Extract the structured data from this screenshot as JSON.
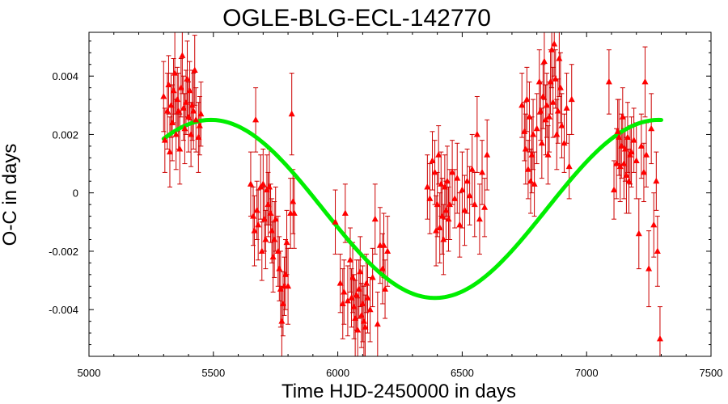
{
  "chart_data": {
    "type": "scatter",
    "title": "OGLE-BLG-ECL-142770",
    "xlabel": "Time HJD-2450000 in days",
    "ylabel": "O-C in days",
    "xlim": [
      5000,
      7500
    ],
    "ylim": [
      -0.0056,
      0.0055
    ],
    "x_ticks": [
      5000,
      5500,
      6000,
      6500,
      7000,
      7500
    ],
    "x_tick_labels": [
      "5000",
      "5500",
      "6000",
      "6500",
      "7000",
      "7500"
    ],
    "y_ticks": [
      -0.004,
      -0.002,
      0,
      0.002,
      0.004
    ],
    "y_tick_labels": [
      "-0.004",
      "-0.002",
      "0",
      "0.002",
      "0.004"
    ],
    "grid": false,
    "series": [
      {
        "kind": "points-with-errorbars",
        "color": "#ff0000",
        "errorbar_color": "#cc0000",
        "points": [
          [
            5300,
            0.0033,
            0.0012
          ],
          [
            5305,
            0.0018,
            0.0011
          ],
          [
            5315,
            0.0028,
            0.0013
          ],
          [
            5320,
            0.0037,
            0.001
          ],
          [
            5325,
            0.0014,
            0.0012
          ],
          [
            5330,
            0.003,
            0.0011
          ],
          [
            5335,
            0.0024,
            0.0013
          ],
          [
            5340,
            0.0035,
            0.0011
          ],
          [
            5345,
            0.0041,
            0.0014
          ],
          [
            5350,
            0.002,
            0.0012
          ],
          [
            5355,
            0.0032,
            0.0011
          ],
          [
            5360,
            0.0028,
            0.0013
          ],
          [
            5365,
            0.0015,
            0.0012
          ],
          [
            5370,
            0.0036,
            0.001
          ],
          [
            5375,
            0.0047,
            0.0013
          ],
          [
            5380,
            0.0029,
            0.0011
          ],
          [
            5385,
            0.0022,
            0.0012
          ],
          [
            5390,
            0.0031,
            0.0011
          ],
          [
            5395,
            0.0039,
            0.0013
          ],
          [
            5400,
            0.0026,
            0.0012
          ],
          [
            5405,
            0.0035,
            0.001
          ],
          [
            5410,
            0.002,
            0.0011
          ],
          [
            5415,
            0.003,
            0.0012
          ],
          [
            5420,
            0.0028,
            0.0013
          ],
          [
            5425,
            0.0042,
            0.0012
          ],
          [
            5430,
            0.0025,
            0.0011
          ],
          [
            5440,
            0.0019,
            0.0012
          ],
          [
            5445,
            0.0023,
            0.001
          ],
          [
            5450,
            0.0027,
            0.0011
          ],
          [
            5650,
            0.0003,
            0.0011
          ],
          [
            5660,
            -0.0008,
            0.001
          ],
          [
            5665,
            -0.0013,
            0.0012
          ],
          [
            5670,
            0.0025,
            0.0011
          ],
          [
            5675,
            -0.0006,
            0.001
          ],
          [
            5680,
            -0.0011,
            0.0012
          ],
          [
            5690,
            0.0002,
            0.0011
          ],
          [
            5695,
            -0.002,
            0.001
          ],
          [
            5700,
            0.0003,
            0.0012
          ],
          [
            5705,
            -0.0009,
            0.0011
          ],
          [
            5710,
            -0.0016,
            0.001
          ],
          [
            5715,
            0.0001,
            0.0012
          ],
          [
            5720,
            -0.0004,
            0.0011
          ],
          [
            5725,
            0.0002,
            0.0013
          ],
          [
            5730,
            -0.0007,
            0.001
          ],
          [
            5735,
            -0.0013,
            0.0011
          ],
          [
            5740,
            -0.0022,
            0.0012
          ],
          [
            5745,
            -0.0016,
            0.0013
          ],
          [
            5750,
            -0.0009,
            0.0011
          ],
          [
            5760,
            -0.002,
            0.0012
          ],
          [
            5765,
            -0.0026,
            0.0011
          ],
          [
            5770,
            -0.0033,
            0.0013
          ],
          [
            5775,
            -0.0044,
            0.0012
          ],
          [
            5780,
            -0.0038,
            0.0011
          ],
          [
            5785,
            -0.0032,
            0.001
          ],
          [
            5790,
            -0.0028,
            0.0012
          ],
          [
            5795,
            -0.0017,
            0.0011
          ],
          [
            5800,
            -0.0032,
            0.0013
          ],
          [
            5810,
            -0.0007,
            0.0012
          ],
          [
            5815,
            0.0027,
            0.0014
          ],
          [
            5820,
            -0.0003,
            0.0011
          ],
          [
            5825,
            -0.0007,
            0.0012
          ],
          [
            5990,
            -0.001,
            0.0011
          ],
          [
            6010,
            -0.0031,
            0.001
          ],
          [
            6020,
            -0.0038,
            0.0012
          ],
          [
            6025,
            -0.0034,
            0.0011
          ],
          [
            6030,
            -0.0007,
            0.001
          ],
          [
            6040,
            -0.0037,
            0.0012
          ],
          [
            6050,
            -0.0023,
            0.0011
          ],
          [
            6055,
            -0.0036,
            0.001
          ],
          [
            6060,
            -0.0029,
            0.0012
          ],
          [
            6065,
            -0.0039,
            0.0011
          ],
          [
            6070,
            -0.0043,
            0.0013
          ],
          [
            6075,
            -0.0035,
            0.0012
          ],
          [
            6080,
            -0.0047,
            0.0011
          ],
          [
            6085,
            -0.0033,
            0.001
          ],
          [
            6090,
            -0.0027,
            0.0012
          ],
          [
            6095,
            -0.0042,
            0.0011
          ],
          [
            6100,
            -0.0038,
            0.0013
          ],
          [
            6105,
            -0.0044,
            0.0012
          ],
          [
            6110,
            -0.0046,
            0.0011
          ],
          [
            6115,
            -0.0031,
            0.001
          ],
          [
            6120,
            -0.0036,
            0.0012
          ],
          [
            6130,
            -0.004,
            0.0011
          ],
          [
            6140,
            -0.0029,
            0.001
          ],
          [
            6150,
            -0.0009,
            0.0012
          ],
          [
            6160,
            -0.0045,
            0.0011
          ],
          [
            6170,
            -0.0018,
            0.0013
          ],
          [
            6180,
            -0.0026,
            0.0012
          ],
          [
            6185,
            -0.0018,
            0.0011
          ],
          [
            6190,
            -0.0033,
            0.001
          ],
          [
            6200,
            -0.002,
            0.0012
          ],
          [
            6360,
            0.0002,
            0.0011
          ],
          [
            6370,
            -0.0002,
            0.0012
          ],
          [
            6380,
            0.0011,
            0.001
          ],
          [
            6390,
            0.0007,
            0.0011
          ],
          [
            6395,
            -0.0013,
            0.0012
          ],
          [
            6400,
            -0.0004,
            0.0011
          ],
          [
            6405,
            0.0013,
            0.001
          ],
          [
            6410,
            -0.0012,
            0.0012
          ],
          [
            6415,
            0.0003,
            0.0011
          ],
          [
            6420,
            -0.0008,
            0.0013
          ],
          [
            6425,
            -0.0016,
            0.0012
          ],
          [
            6430,
            0.0002,
            0.0011
          ],
          [
            6435,
            -0.0006,
            0.001
          ],
          [
            6440,
            0.0004,
            0.0012
          ],
          [
            6445,
            -0.0009,
            0.0011
          ],
          [
            6450,
            -0.0004,
            0.0012
          ],
          [
            6460,
            0.0007,
            0.0011
          ],
          [
            6470,
            -0.0002,
            0.001
          ],
          [
            6480,
            0.0005,
            0.0012
          ],
          [
            6490,
            -0.0011,
            0.0011
          ],
          [
            6500,
            0.0001,
            0.0013
          ],
          [
            6510,
            -0.0006,
            0.0012
          ],
          [
            6520,
            0.0004,
            0.0011
          ],
          [
            6530,
            -0.0001,
            0.001
          ],
          [
            6540,
            0.0008,
            0.0012
          ],
          [
            6550,
            -0.0004,
            0.0011
          ],
          [
            6560,
            0.002,
            0.0013
          ],
          [
            6570,
            -0.0009,
            0.0012
          ],
          [
            6580,
            0.0007,
            0.0011
          ],
          [
            6590,
            -0.0005,
            0.001
          ],
          [
            6600,
            0.0013,
            0.0012
          ],
          [
            6740,
            0.003,
            0.0011
          ],
          [
            6750,
            0.0021,
            0.001
          ],
          [
            6755,
            0.0015,
            0.0012
          ],
          [
            6760,
            0.0032,
            0.0011
          ],
          [
            6765,
            0.0008,
            0.001
          ],
          [
            6770,
            0.0026,
            0.0012
          ],
          [
            6775,
            0.0004,
            0.0011
          ],
          [
            6780,
            0.0013,
            0.0013
          ],
          [
            6785,
            0.002,
            0.0012
          ],
          [
            6790,
            0.0003,
            0.0011
          ],
          [
            6800,
            0.0022,
            0.0012
          ],
          [
            6810,
            0.0038,
            0.0011
          ],
          [
            6815,
            0.0028,
            0.001
          ],
          [
            6820,
            0.0017,
            0.0012
          ],
          [
            6825,
            0.0033,
            0.0011
          ],
          [
            6830,
            0.0045,
            0.0013
          ],
          [
            6835,
            0.0025,
            0.0012
          ],
          [
            6840,
            0.003,
            0.0011
          ],
          [
            6845,
            0.0013,
            0.001
          ],
          [
            6850,
            0.0026,
            0.0012
          ],
          [
            6855,
            0.0038,
            0.0011
          ],
          [
            6860,
            0.0049,
            0.0013
          ],
          [
            6865,
            0.0031,
            0.0012
          ],
          [
            6870,
            0.0051,
            0.0011
          ],
          [
            6875,
            0.0039,
            0.001
          ],
          [
            6880,
            0.002,
            0.0012
          ],
          [
            6885,
            0.0028,
            0.0011
          ],
          [
            6890,
            0.0046,
            0.0013
          ],
          [
            6895,
            0.0036,
            0.0012
          ],
          [
            6900,
            0.0023,
            0.0011
          ],
          [
            6910,
            0.0017,
            0.001
          ],
          [
            6920,
            0.0029,
            0.0012
          ],
          [
            6930,
            0.0009,
            0.0011
          ],
          [
            6940,
            0.0032,
            0.0012
          ],
          [
            7090,
            0.0038,
            0.0011
          ],
          [
            7110,
            0.0001,
            0.001
          ],
          [
            7120,
            0.001,
            0.0012
          ],
          [
            7125,
            0.0021,
            0.0011
          ],
          [
            7130,
            0.0019,
            0.0013
          ],
          [
            7135,
            0.0009,
            0.0012
          ],
          [
            7140,
            0.0016,
            0.0011
          ],
          [
            7145,
            0.0026,
            0.001
          ],
          [
            7150,
            0.001,
            0.0012
          ],
          [
            7155,
            0.0015,
            0.0011
          ],
          [
            7160,
            0.0006,
            0.0013
          ],
          [
            7165,
            0.0019,
            0.0012
          ],
          [
            7170,
            0.0004,
            0.0011
          ],
          [
            7175,
            0.0013,
            0.001
          ],
          [
            7180,
            0.0014,
            0.0012
          ],
          [
            7190,
            0.0018,
            0.0011
          ],
          [
            7200,
            0.0011,
            0.0013
          ],
          [
            7210,
            -0.0014,
            0.0012
          ],
          [
            7220,
            0.0016,
            0.0011
          ],
          [
            7230,
            0.0007,
            0.001
          ],
          [
            7235,
            0.0038,
            0.0012
          ],
          [
            7240,
            0.0013,
            0.0011
          ],
          [
            7250,
            -0.0026,
            0.0013
          ],
          [
            7260,
            0.0022,
            0.0012
          ],
          [
            7270,
            -0.0011,
            0.0011
          ],
          [
            7280,
            0.0004,
            0.001
          ],
          [
            7285,
            -0.002,
            0.0012
          ],
          [
            7295,
            -0.005,
            0.0011
          ]
        ]
      },
      {
        "kind": "fit-curve",
        "color": "#00ee00",
        "x_range": [
          5300,
          7300
        ],
        "model": "a*sin(2*pi*(x-x0)/period)+c",
        "a": 0.00305,
        "c": -0.00055,
        "period": 1800,
        "x0": 5040
      }
    ]
  }
}
